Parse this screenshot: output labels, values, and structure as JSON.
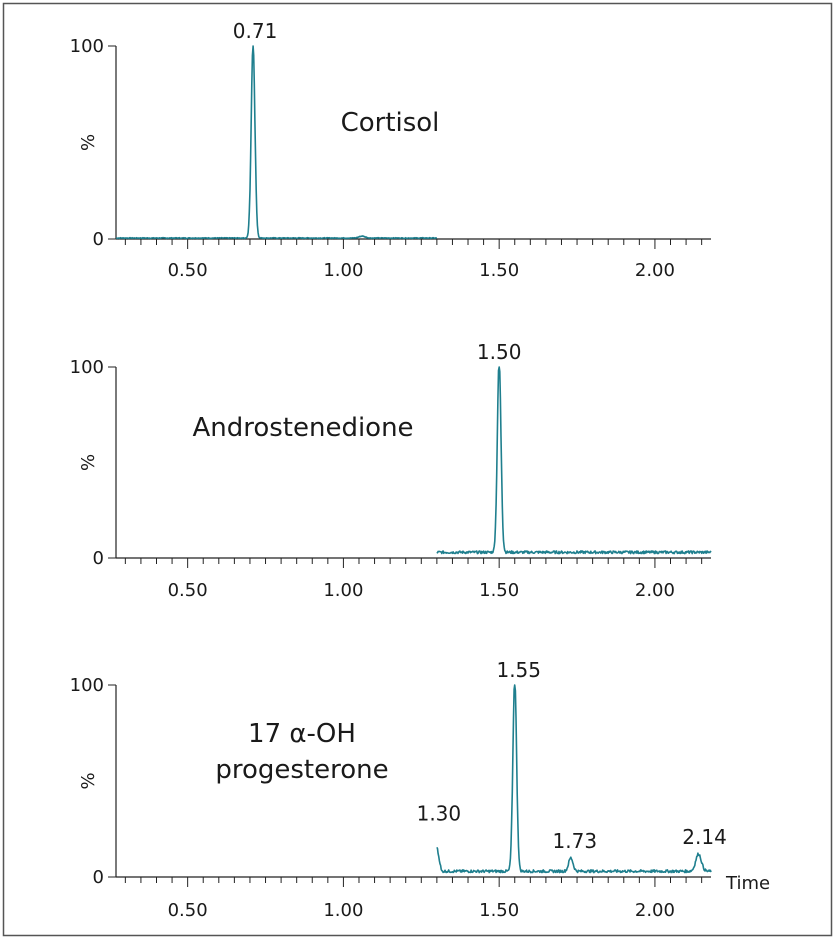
{
  "chart_data": [
    {
      "type": "line",
      "compound": [
        "Cortisol"
      ],
      "ylabel": "%",
      "xlabel": "",
      "xlim": [
        0.27,
        2.18
      ],
      "ylim": [
        0,
        100
      ],
      "yticks": [
        "0",
        "100"
      ],
      "xticks": [
        {
          "v": 0.5,
          "label": "0.50"
        },
        {
          "v": 1.0,
          "label": "1.00"
        },
        {
          "v": 1.5,
          "label": "1.50"
        },
        {
          "v": 2.0,
          "label": "2.00"
        }
      ],
      "trace_color": "#1f7f8e",
      "trace_range": [
        0.27,
        1.3
      ],
      "baseline": 0.5,
      "peaks": [
        {
          "rt": 0.71,
          "height": 100,
          "width": 0.006,
          "label": "0.71"
        },
        {
          "rt": 1.06,
          "height": 1,
          "width": 0.01,
          "label": ""
        }
      ]
    },
    {
      "type": "line",
      "compound": [
        "Androstenedione"
      ],
      "ylabel": "%",
      "xlabel": "",
      "xlim": [
        0.27,
        2.18
      ],
      "ylim": [
        0,
        100
      ],
      "yticks": [
        "0",
        "100"
      ],
      "xticks": [
        {
          "v": 0.5,
          "label": "0.50"
        },
        {
          "v": 1.0,
          "label": "1.00"
        },
        {
          "v": 1.5,
          "label": "1.50"
        },
        {
          "v": 2.0,
          "label": "2.00"
        }
      ],
      "trace_color": "#1f7f8e",
      "trace_range": [
        1.3,
        2.18
      ],
      "baseline": 3,
      "peaks": [
        {
          "rt": 1.5,
          "height": 100,
          "width": 0.006,
          "label": "1.50"
        }
      ]
    },
    {
      "type": "line",
      "compound": [
        "17 α-OH",
        "progesterone"
      ],
      "ylabel": "%",
      "xlabel": "Time",
      "xlim": [
        0.27,
        2.18
      ],
      "ylim": [
        0,
        100
      ],
      "yticks": [
        "0",
        "100"
      ],
      "xticks": [
        {
          "v": 0.5,
          "label": "0.50"
        },
        {
          "v": 1.0,
          "label": "1.00"
        },
        {
          "v": 1.5,
          "label": "1.50"
        },
        {
          "v": 2.0,
          "label": "2.00"
        }
      ],
      "trace_color": "#1f7f8e",
      "trace_range": [
        1.3,
        2.18
      ],
      "baseline": 3,
      "start_spike": {
        "rt": 1.3,
        "height": 13
      },
      "peaks": [
        {
          "rt": 1.55,
          "height": 100,
          "width": 0.006,
          "label": "1.55"
        },
        {
          "rt": 1.73,
          "height": 7,
          "width": 0.007,
          "label": "1.73"
        },
        {
          "rt": 2.14,
          "height": 9,
          "width": 0.009,
          "label": "2.14"
        },
        {
          "rt": 1.3,
          "height": 0,
          "width": 0.005,
          "label": "1.30"
        }
      ]
    }
  ]
}
